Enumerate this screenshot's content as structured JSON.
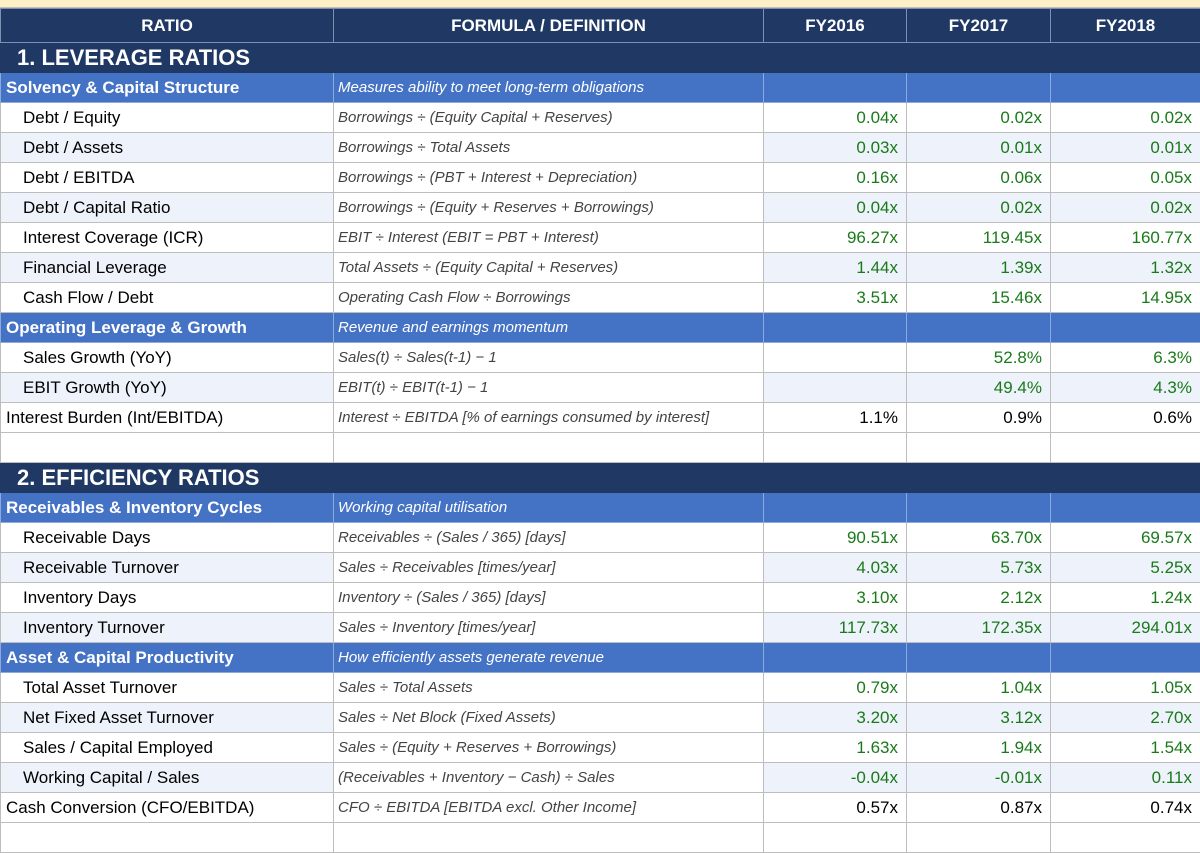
{
  "columns": {
    "ratio": "RATIO",
    "formula": "FORMULA / DEFINITION",
    "fy2016": "FY2016",
    "fy2017": "FY2017",
    "fy2018": "FY2018"
  },
  "colors": {
    "header_bg": "#1f3864",
    "group_bg": "#4472c4",
    "value_green": "#1a7a1a"
  },
  "sections": [
    {
      "title": "1. LEVERAGE RATIOS",
      "groups": [
        {
          "name": "Solvency & Capital Structure",
          "desc": "Measures ability to meet long-term obligations",
          "rows": [
            {
              "label": "Debt / Equity",
              "formula": "Borrowings ÷ (Equity Capital + Reserves)",
              "v2016": "0.04x",
              "v2017": "0.02x",
              "v2018": "0.02x"
            },
            {
              "label": "Debt / Assets",
              "formula": "Borrowings ÷ Total Assets",
              "v2016": "0.03x",
              "v2017": "0.01x",
              "v2018": "0.01x"
            },
            {
              "label": "Debt / EBITDA",
              "formula": "Borrowings ÷ (PBT + Interest + Depreciation)",
              "v2016": "0.16x",
              "v2017": "0.06x",
              "v2018": "0.05x"
            },
            {
              "label": "Debt / Capital Ratio",
              "formula": "Borrowings ÷ (Equity + Reserves + Borrowings)",
              "v2016": "0.04x",
              "v2017": "0.02x",
              "v2018": "0.02x"
            },
            {
              "label": "Interest Coverage (ICR)",
              "formula": "EBIT ÷ Interest  (EBIT = PBT + Interest)",
              "v2016": "96.27x",
              "v2017": "119.45x",
              "v2018": "160.77x"
            },
            {
              "label": "Financial Leverage",
              "formula": "Total Assets ÷ (Equity Capital + Reserves)",
              "v2016": "1.44x",
              "v2017": "1.39x",
              "v2018": "1.32x"
            },
            {
              "label": "Cash Flow / Debt",
              "formula": "Operating Cash Flow ÷ Borrowings",
              "v2016": "3.51x",
              "v2017": "15.46x",
              "v2018": "14.95x"
            }
          ]
        },
        {
          "name": "Operating Leverage & Growth",
          "desc": "Revenue and earnings momentum",
          "rows": [
            {
              "label": "Sales Growth (YoY)",
              "formula": "Sales(t) ÷ Sales(t-1) − 1",
              "v2016": "",
              "v2017": "52.8%",
              "v2018": "6.3%"
            },
            {
              "label": "EBIT Growth (YoY)",
              "formula": "EBIT(t) ÷ EBIT(t-1) − 1",
              "v2016": "",
              "v2017": "49.4%",
              "v2018": "4.3%"
            },
            {
              "label": "Interest Burden (Int/EBITDA)",
              "formula": "Interest ÷ EBITDA  [% of earnings consumed by interest]",
              "v2016": "1.1%",
              "v2017": "0.9%",
              "v2018": "0.6%"
            }
          ]
        }
      ]
    },
    {
      "title": "2. EFFICIENCY RATIOS",
      "groups": [
        {
          "name": "Receivables & Inventory Cycles",
          "desc": "Working capital utilisation",
          "rows": [
            {
              "label": "Receivable Days",
              "formula": "Receivables ÷ (Sales / 365)  [days]",
              "v2016": "90.51x",
              "v2017": "63.70x",
              "v2018": "69.57x"
            },
            {
              "label": "Receivable Turnover",
              "formula": "Sales ÷ Receivables  [times/year]",
              "v2016": "4.03x",
              "v2017": "5.73x",
              "v2018": "5.25x"
            },
            {
              "label": "Inventory Days",
              "formula": "Inventory ÷ (Sales / 365)  [days]",
              "v2016": "3.10x",
              "v2017": "2.12x",
              "v2018": "1.24x"
            },
            {
              "label": "Inventory Turnover",
              "formula": "Sales ÷ Inventory  [times/year]",
              "v2016": "117.73x",
              "v2017": "172.35x",
              "v2018": "294.01x"
            }
          ]
        },
        {
          "name": "Asset & Capital Productivity",
          "desc": "How efficiently assets generate revenue",
          "rows": [
            {
              "label": "Total Asset Turnover",
              "formula": "Sales ÷ Total Assets",
              "v2016": "0.79x",
              "v2017": "1.04x",
              "v2018": "1.05x"
            },
            {
              "label": "Net Fixed Asset Turnover",
              "formula": "Sales ÷ Net Block (Fixed Assets)",
              "v2016": "3.20x",
              "v2017": "3.12x",
              "v2018": "2.70x"
            },
            {
              "label": "Sales / Capital Employed",
              "formula": "Sales ÷ (Equity + Reserves + Borrowings)",
              "v2016": "1.63x",
              "v2017": "1.94x",
              "v2018": "1.54x"
            },
            {
              "label": "Working Capital / Sales",
              "formula": "(Receivables + Inventory − Cash) ÷ Sales",
              "v2016": "-0.04x",
              "v2017": "-0.01x",
              "v2018": "0.11x"
            },
            {
              "label": "Cash Conversion (CFO/EBITDA)",
              "formula": "CFO ÷ EBITDA  [EBITDA excl. Other Income]",
              "v2016": "0.57x",
              "v2017": "0.87x",
              "v2018": "0.74x"
            }
          ]
        }
      ]
    }
  ]
}
